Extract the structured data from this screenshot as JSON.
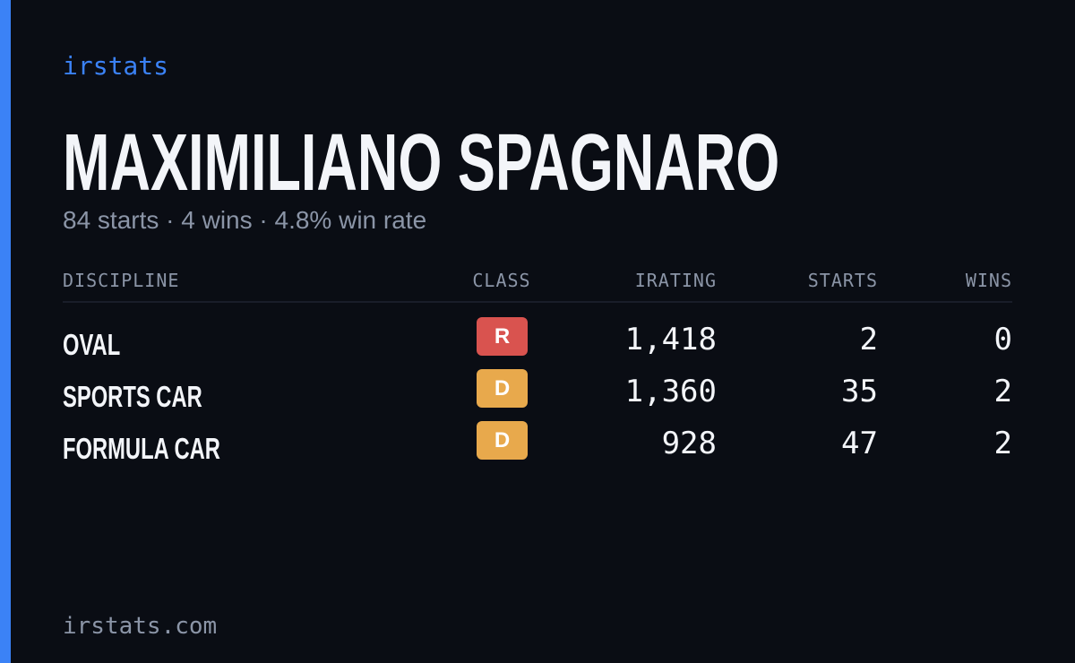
{
  "brand": "irstats",
  "player": {
    "name": "MAXIMILIANO SPAGNARO",
    "summary": "84 starts · 4 wins · 4.8% win rate"
  },
  "table": {
    "columns": [
      "DISCIPLINE",
      "CLASS",
      "IRATING",
      "STARTS",
      "WINS"
    ],
    "rows": [
      [
        "OVAL",
        "R",
        "1,418",
        "2",
        "0"
      ],
      [
        "SPORTS CAR",
        "D",
        "1,360",
        "35",
        "2"
      ],
      [
        "FORMULA CAR",
        "D",
        "928",
        "47",
        "2"
      ]
    ]
  },
  "footer": "irstats.com"
}
